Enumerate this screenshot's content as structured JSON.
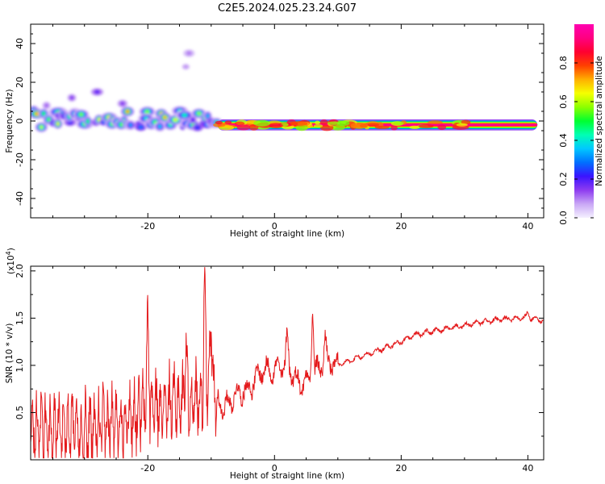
{
  "figure_title": "C2E5.2024.025.23.24.G07",
  "chart_data": [
    {
      "type": "heatmap",
      "xlabel": "Height of straight line (km)",
      "ylabel": "Frequency (Hz)",
      "xlim": [
        -38.5,
        42.5
      ],
      "ylim": [
        -50,
        50
      ],
      "xticks": [
        -20,
        0,
        20,
        40
      ],
      "yticks": [
        -40,
        -20,
        0,
        20,
        40
      ],
      "colorbar": {
        "label": "Normalized spectral amplitude",
        "range": [
          0,
          1
        ],
        "ticks": [
          0.0,
          0.2,
          0.4,
          0.6,
          0.8
        ],
        "colors": [
          "#f5f0ff",
          "#c9a7f5",
          "#8e3cf0",
          "#3a14ff",
          "#0070ff",
          "#00c8ff",
          "#00ffb4",
          "#00ff30",
          "#8cff00",
          "#f5ff00",
          "#ffb000",
          "#ff4000",
          "#ff0030",
          "#ff0080",
          "#ff00b0"
        ]
      },
      "bands": [
        {
          "x_start": -38.5,
          "x_end": -9,
          "center_hz": 1,
          "halfwidth_hz": 4.5,
          "amplitude": 0.5,
          "note": "fragmented turbulent blobs"
        },
        {
          "x_start": -9,
          "x_end": 41.5,
          "center_hz": -2,
          "halfwidth_hz": 1.2,
          "amplitude": 0.95,
          "note": "steady narrow band"
        }
      ],
      "scattered_blobs": [
        {
          "x": -28,
          "y": 15,
          "amplitude": 0.18
        },
        {
          "x": -32,
          "y": 12,
          "amplitude": 0.15
        },
        {
          "x": -24,
          "y": 9,
          "amplitude": 0.15
        },
        {
          "x": -36,
          "y": 8,
          "amplitude": 0.12
        },
        {
          "x": -13.5,
          "y": 35,
          "amplitude": 0.1
        },
        {
          "x": -14,
          "y": 28,
          "amplitude": 0.08
        }
      ]
    },
    {
      "type": "line",
      "xlabel": "Height of straight line (km)",
      "ylabel": "SNR (10 * v/v)",
      "y_exponent_label": "(x10",
      "y_exponent_power": "4",
      "xlim": [
        -38.5,
        42.5
      ],
      "ylim": [
        0,
        2.05
      ],
      "xticks": [
        -20,
        0,
        20,
        40
      ],
      "yticks": [
        0.5,
        1.0,
        1.5,
        2.0
      ],
      "line_color": "#e41a1c",
      "series": [
        {
          "name": "SNR",
          "points": [
            [
              -38.5,
              0.35
            ],
            [
              -35,
              0.3
            ],
            [
              -30,
              0.3
            ],
            [
              -25,
              0.4
            ],
            [
              -20,
              0.55
            ],
            [
              -15,
              0.6
            ],
            [
              -12,
              0.65
            ],
            [
              -11,
              0.7
            ],
            [
              -10,
              0.7
            ],
            [
              -8,
              0.55
            ],
            [
              -6,
              0.7
            ],
            [
              -4,
              0.75
            ],
            [
              -2,
              0.95
            ],
            [
              0,
              0.95
            ],
            [
              2,
              1.0
            ],
            [
              4,
              0.8
            ],
            [
              6,
              0.9
            ],
            [
              8,
              1.05
            ],
            [
              10,
              1.0
            ],
            [
              12,
              1.05
            ],
            [
              14,
              1.1
            ],
            [
              16,
              1.15
            ],
            [
              18,
              1.2
            ],
            [
              20,
              1.25
            ],
            [
              22,
              1.32
            ],
            [
              24,
              1.35
            ],
            [
              26,
              1.37
            ],
            [
              28,
              1.4
            ],
            [
              30,
              1.42
            ],
            [
              32,
              1.45
            ],
            [
              34,
              1.47
            ],
            [
              36,
              1.49
            ],
            [
              38,
              1.5
            ],
            [
              40,
              1.51
            ],
            [
              42.5,
              1.47
            ]
          ]
        }
      ],
      "peaks": [
        {
          "x": -11,
          "y": 2.04
        },
        {
          "x": -20,
          "y": 1.55
        },
        {
          "x": -10,
          "y": 1.47
        },
        {
          "x": 6,
          "y": 1.65
        },
        {
          "x": 2,
          "y": 1.35
        },
        {
          "x": 8,
          "y": 1.3
        },
        {
          "x": -14,
          "y": 1.3
        },
        {
          "x": 40,
          "y": 1.56
        }
      ]
    }
  ]
}
